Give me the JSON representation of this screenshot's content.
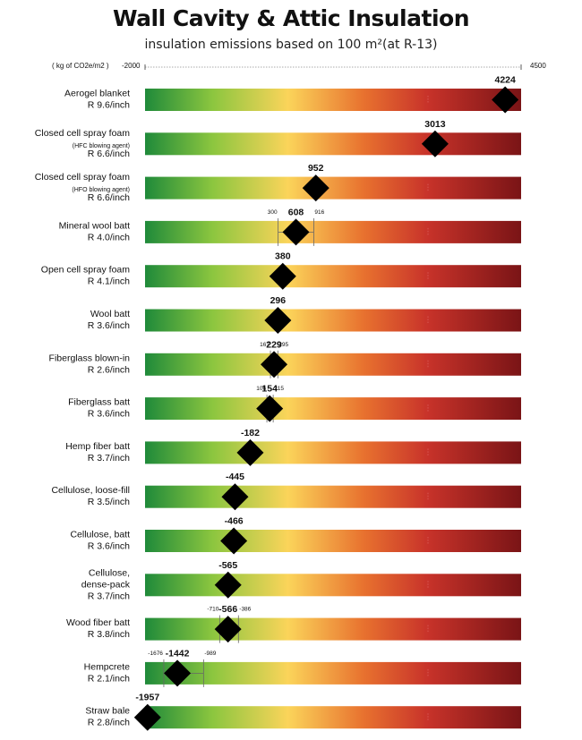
{
  "title": "Wall Cavity & Attic Insulation",
  "subtitle": "insulation emissions based on 100 m²(at R-13)",
  "unit_label": "( kg of CO2e/m2 )",
  "axis_min_label": "-2000",
  "axis_max_label": "4500",
  "colors": {
    "bar_start": "#1f8a3a",
    "bar_light_green": "#8cc63f",
    "bar_yellow": "#fbd45a",
    "bar_orange": "#e8722f",
    "bar_red": "#c8332a",
    "bar_end": "#7a1416",
    "marker": "#000000"
  },
  "chart_data": {
    "type": "scatter",
    "title": "Wall Cavity & Attic Insulation",
    "subtitle": "insulation emissions based on 100 m²(at R-13)",
    "xlabel": "( kg of CO2e/m2 )",
    "xlim": [
      -2000,
      4500
    ],
    "rows": [
      {
        "name": "Aerogel blanket",
        "sub": "",
        "r": "R 9.6/inch",
        "value": 4224,
        "label": "4224"
      },
      {
        "name": "Closed cell spray foam",
        "sub": "(HFC blowing agent)",
        "r": "R 6.6/inch",
        "value": 3013,
        "label": "3013"
      },
      {
        "name": "Closed cell spray foam",
        "sub": "(HFO blowing agent)",
        "r": "R 6.6/inch",
        "value": 952,
        "label": "952"
      },
      {
        "name": "Mineral wool batt",
        "sub": "",
        "r": "R 4.0/inch",
        "value": 608,
        "label": "608",
        "low": 300,
        "high": 916,
        "low_label": "300",
        "high_label": "916"
      },
      {
        "name": "Open cell spray foam",
        "sub": "",
        "r": "R 4.1/inch",
        "value": 380,
        "label": "380"
      },
      {
        "name": "Wool batt",
        "sub": "",
        "r": "R 3.6/inch",
        "value": 296,
        "label": "296"
      },
      {
        "name": "Fiberglass blown-in",
        "sub": "",
        "r": "R 2.6/inch",
        "value": 229,
        "label": "229",
        "low": 167,
        "high": 295,
        "low_label": "167",
        "high_label": "295"
      },
      {
        "name": "Fiberglass batt",
        "sub": "",
        "r": "R  3.6/inch",
        "value": 154,
        "label": "154",
        "low": 106,
        "high": 215,
        "low_label": "106",
        "high_label": "215"
      },
      {
        "name": "Hemp fiber batt",
        "sub": "",
        "r": "R 3.7/inch",
        "value": -182,
        "label": "-182"
      },
      {
        "name": "Cellulose, loose-fill",
        "sub": "",
        "r": "R 3.5/inch",
        "value": -445,
        "label": "-445"
      },
      {
        "name": "Cellulose, batt",
        "sub": "",
        "r": "R 3.6/inch",
        "value": -466,
        "label": "-466"
      },
      {
        "name": "Cellulose,",
        "sub2": "dense-pack",
        "r": "R 3.7/inch",
        "value": -565,
        "label": "-565"
      },
      {
        "name": "Wood fiber batt",
        "sub": "",
        "r": "R 3.8/inch",
        "value": -566,
        "label": "-566",
        "low": -710,
        "high": -386,
        "low_label": "-710",
        "high_label": "-386"
      },
      {
        "name": "Hempcrete",
        "sub": "",
        "r": "R 2.1/inch",
        "value": -1442,
        "label": "-1442",
        "low": -1676,
        "high": -989,
        "low_label": "-1676",
        "high_label": "-989"
      },
      {
        "name": "Straw bale",
        "sub": "",
        "r": "R 2.8/inch",
        "value": -1957,
        "label": "-1957"
      }
    ]
  }
}
